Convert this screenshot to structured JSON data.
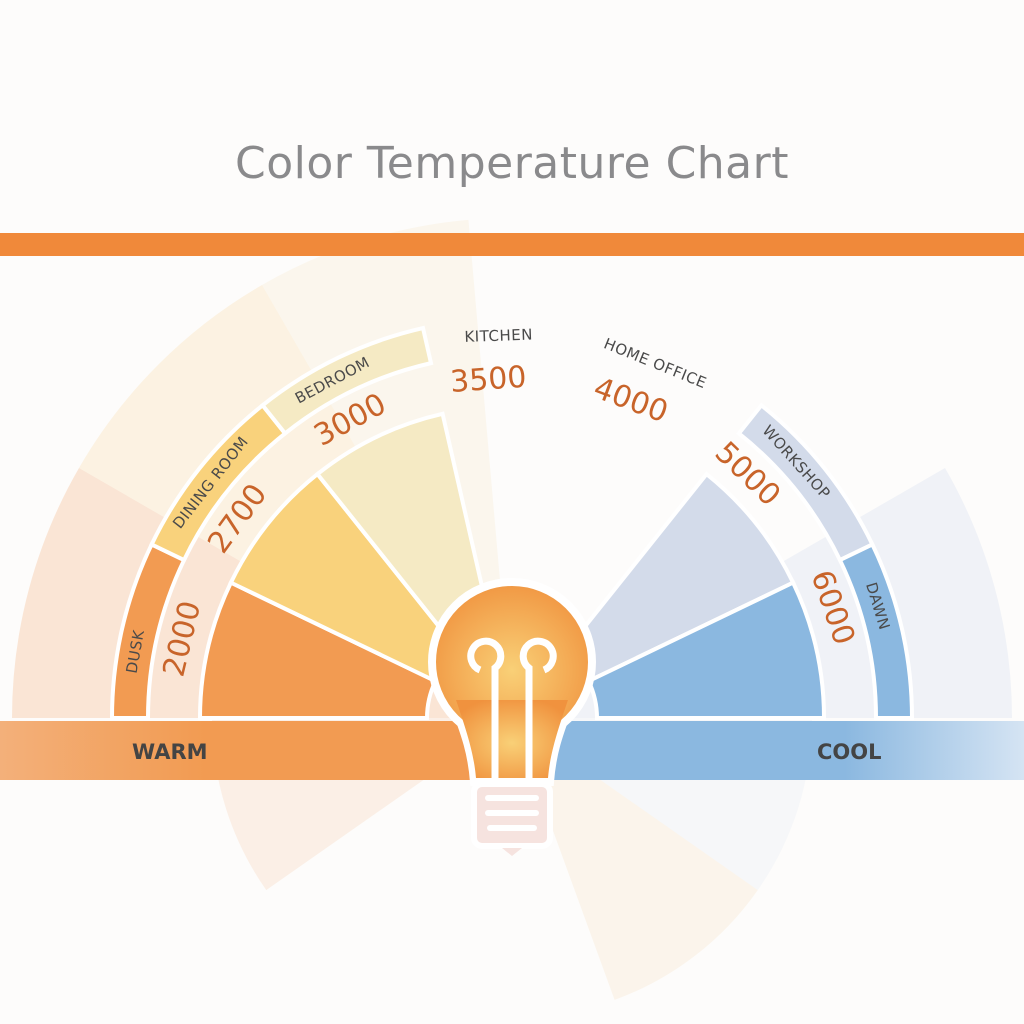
{
  "title": "Color Temperature Chart",
  "scale": {
    "warm_label": "WARM",
    "cool_label": "COOL"
  },
  "colors": {
    "top_bar": "#f0893a",
    "value_text": "#c8642a",
    "warm": "#f29b52",
    "cool": "#8bb8e0"
  },
  "sectors": [
    {
      "label": "DUSK",
      "kelvin": "2000",
      "color": "#f29b52"
    },
    {
      "label": "DINING ROOM",
      "kelvin": "2700",
      "color": "#f9d27c"
    },
    {
      "label": "BEDROOM",
      "kelvin": "3000",
      "color": "#f5eac4"
    },
    {
      "label": "KITCHEN",
      "kelvin": "3500",
      "color": null
    },
    {
      "label": "HOME OFFICE",
      "kelvin": "4000",
      "color": null
    },
    {
      "label": "WORKSHOP",
      "kelvin": "5000",
      "color": "#d3dbea"
    },
    {
      "label": "DAWN",
      "kelvin": "6000",
      "color": "#8bb8e0"
    }
  ],
  "center_icon": "light-bulb-icon"
}
